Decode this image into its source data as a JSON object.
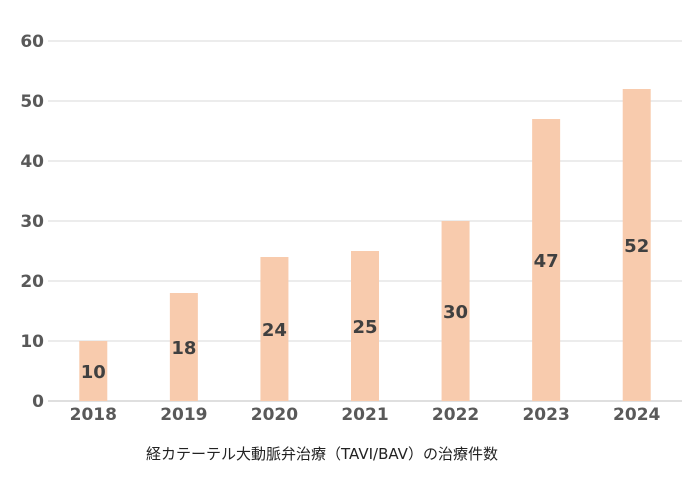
{
  "chart_data": {
    "type": "bar",
    "categories": [
      "2018",
      "2019",
      "2020",
      "2021",
      "2022",
      "2023",
      "2024"
    ],
    "values": [
      10,
      18,
      24,
      25,
      30,
      47,
      52
    ],
    "title": "",
    "xlabel": "経カテーテル大動脈弁治療（TAVI/BAV）の治療件数",
    "ylabel": "",
    "ylim": [
      0,
      60
    ],
    "yticks": [
      0,
      10,
      20,
      30,
      40,
      50,
      60
    ],
    "grid": true,
    "legend": "none",
    "bar_color": "#f8cbad",
    "data_labels": true
  }
}
